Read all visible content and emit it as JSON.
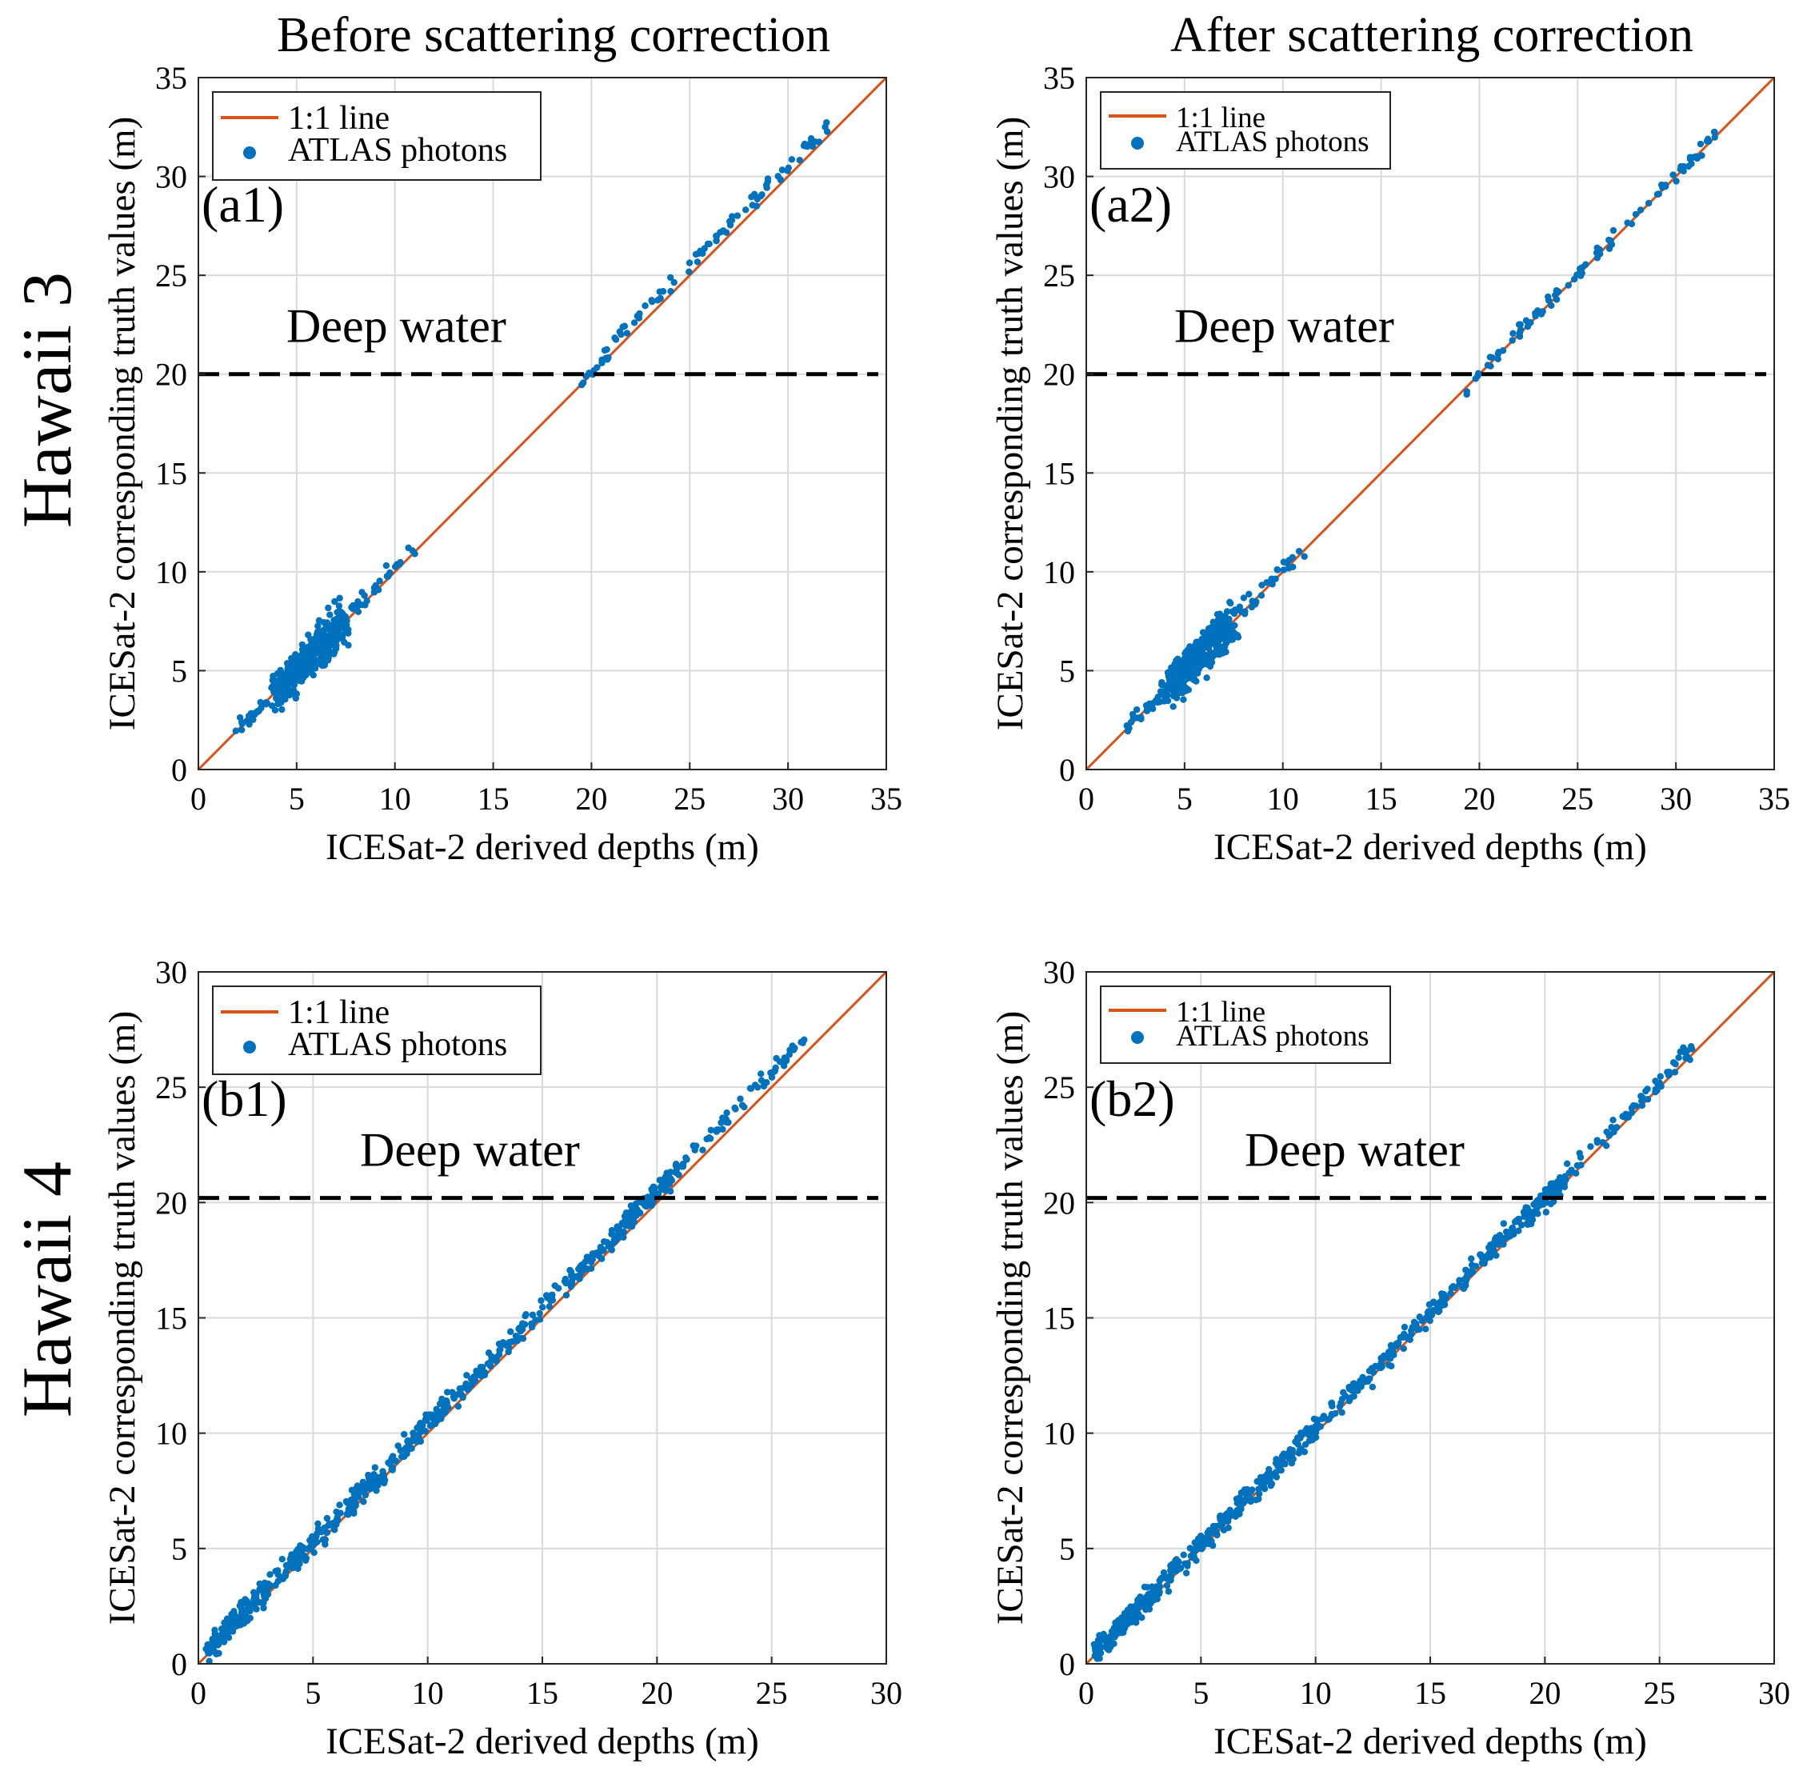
{
  "colors": {
    "line": "#D95319",
    "points": "#0072BD",
    "threshold": "#000000",
    "grid": "#d9d9d9"
  },
  "column_titles": [
    "Before scattering correction",
    "After scattering correction"
  ],
  "row_titles": [
    "Hawaii 3",
    "Hawaii 4"
  ],
  "chart_data": [
    {
      "id": "a1",
      "type": "scatter",
      "panel_label": "(a1)",
      "column": 0,
      "row": 0,
      "xlabel": "ICESat-2 derived depths (m)",
      "ylabel": "ICESat-2 corresponding truth values (m)",
      "xlim": [
        0,
        35
      ],
      "ylim": [
        0,
        35
      ],
      "xticks": [
        0,
        5,
        10,
        15,
        20,
        25,
        30,
        35
      ],
      "yticks": [
        0,
        5,
        10,
        15,
        20,
        25,
        30,
        35
      ],
      "grid": true,
      "legend_position": "top-left",
      "legend_text_style": "normal",
      "legend": [
        "1:1 line",
        "ATLAS photons"
      ],
      "series": [
        {
          "name": "1:1 line",
          "kind": "line",
          "x": [
            0,
            35
          ],
          "y": [
            0,
            35
          ]
        },
        {
          "name": "ATLAS photons",
          "kind": "scatter",
          "clusters": [
            {
              "x_range": [
                2.0,
                4.0
              ],
              "spread": 0.35,
              "bias": 0.0,
              "n": 25
            },
            {
              "x_range": [
                4.0,
                7.5
              ],
              "spread": 1.0,
              "bias": 0.0,
              "n": 330
            },
            {
              "x_range": [
                7.5,
                11.0
              ],
              "spread": 0.45,
              "bias": 0.2,
              "n": 30
            },
            {
              "x_range": [
                19.3,
                21.0
              ],
              "spread": 0.3,
              "bias": 0.1,
              "n": 12
            },
            {
              "x_range": [
                20.5,
                32.5
              ],
              "spread": 0.35,
              "bias": 0.5,
              "n": 80
            }
          ]
        }
      ],
      "threshold": {
        "y": 20.0,
        "label": "Deep water"
      }
    },
    {
      "id": "a2",
      "type": "scatter",
      "panel_label": "(a2)",
      "column": 1,
      "row": 0,
      "xlabel": "ICESat-2 derived depths (m)",
      "ylabel": "ICESat-2 corresponding truth values (m)",
      "xlim": [
        0,
        35
      ],
      "ylim": [
        0,
        35
      ],
      "xticks": [
        0,
        5,
        10,
        15,
        20,
        25,
        30,
        35
      ],
      "yticks": [
        0,
        5,
        10,
        15,
        20,
        25,
        30,
        35
      ],
      "grid": true,
      "legend_position": "top-left",
      "legend_text_style": "small",
      "legend": [
        "1:1 line",
        "ATLAS photons"
      ],
      "series": [
        {
          "name": "1:1 line",
          "kind": "line",
          "x": [
            0,
            35
          ],
          "y": [
            0,
            35
          ]
        },
        {
          "name": "ATLAS photons",
          "kind": "scatter",
          "clusters": [
            {
              "x_range": [
                2.0,
                4.0
              ],
              "spread": 0.35,
              "bias": 0.0,
              "n": 25
            },
            {
              "x_range": [
                4.0,
                7.5
              ],
              "spread": 1.0,
              "bias": 0.0,
              "n": 330
            },
            {
              "x_range": [
                7.5,
                11.0
              ],
              "spread": 0.4,
              "bias": 0.1,
              "n": 30
            },
            {
              "x_range": [
                19.2,
                21.0
              ],
              "spread": 0.3,
              "bias": 0.0,
              "n": 12
            },
            {
              "x_range": [
                20.5,
                32.3
              ],
              "spread": 0.3,
              "bias": 0.1,
              "n": 80
            }
          ]
        }
      ],
      "threshold": {
        "y": 20.0,
        "label": "Deep water"
      }
    },
    {
      "id": "b1",
      "type": "scatter",
      "panel_label": "(b1)",
      "column": 0,
      "row": 1,
      "xlabel": "ICESat-2 derived depths (m)",
      "ylabel": "ICESat-2 corresponding truth values (m)",
      "xlim": [
        0,
        30
      ],
      "ylim": [
        0,
        30
      ],
      "xticks": [
        0,
        5,
        10,
        15,
        20,
        25,
        30
      ],
      "yticks": [
        0,
        5,
        10,
        15,
        20,
        25,
        30
      ],
      "grid": true,
      "legend_position": "top-left",
      "legend_text_style": "normal",
      "legend": [
        "1:1 line",
        "ATLAS photons"
      ],
      "series": [
        {
          "name": "1:1 line",
          "kind": "line",
          "x": [
            0,
            30
          ],
          "y": [
            0,
            30
          ]
        },
        {
          "name": "ATLAS photons",
          "kind": "scatter",
          "clusters": [
            {
              "x_range": [
                0.3,
                3.0
              ],
              "spread": 0.45,
              "bias": 0.2,
              "n": 150
            },
            {
              "x_range": [
                3.0,
                8.5
              ],
              "spread": 0.45,
              "bias": 0.3,
              "n": 170
            },
            {
              "x_range": [
                8.5,
                18.5
              ],
              "spread": 0.4,
              "bias": 0.4,
              "n": 230
            },
            {
              "x_range": [
                18.5,
                21.0
              ],
              "spread": 0.45,
              "bias": 0.5,
              "n": 90
            },
            {
              "x_range": [
                21.0,
                26.5
              ],
              "spread": 0.35,
              "bias": 0.6,
              "n": 60
            }
          ]
        }
      ],
      "threshold": {
        "y": 20.2,
        "label": "Deep water"
      }
    },
    {
      "id": "b2",
      "type": "scatter",
      "panel_label": "(b2)",
      "column": 1,
      "row": 1,
      "xlabel": "ICESat-2 derived depths (m)",
      "ylabel": "ICESat-2 corresponding truth values (m)",
      "xlim": [
        0,
        30
      ],
      "ylim": [
        0,
        30
      ],
      "xticks": [
        0,
        5,
        10,
        15,
        20,
        25,
        30
      ],
      "yticks": [
        0,
        5,
        10,
        15,
        20,
        25,
        30
      ],
      "grid": true,
      "legend_position": "top-left",
      "legend_text_style": "small",
      "legend": [
        "1:1 line",
        "ATLAS photons"
      ],
      "series": [
        {
          "name": "1:1 line",
          "kind": "line",
          "x": [
            0,
            30
          ],
          "y": [
            0,
            30
          ]
        },
        {
          "name": "ATLAS photons",
          "kind": "scatter",
          "clusters": [
            {
              "x_range": [
                0.3,
                3.0
              ],
              "spread": 0.45,
              "bias": 0.1,
              "n": 150
            },
            {
              "x_range": [
                3.0,
                8.5
              ],
              "spread": 0.45,
              "bias": 0.15,
              "n": 170
            },
            {
              "x_range": [
                8.5,
                18.5
              ],
              "spread": 0.4,
              "bias": 0.2,
              "n": 230
            },
            {
              "x_range": [
                18.5,
                21.0
              ],
              "spread": 0.45,
              "bias": 0.2,
              "n": 90
            },
            {
              "x_range": [
                21.0,
                26.5
              ],
              "spread": 0.35,
              "bias": 0.2,
              "n": 60
            }
          ]
        }
      ],
      "threshold": {
        "y": 20.2,
        "label": "Deep water"
      }
    }
  ]
}
